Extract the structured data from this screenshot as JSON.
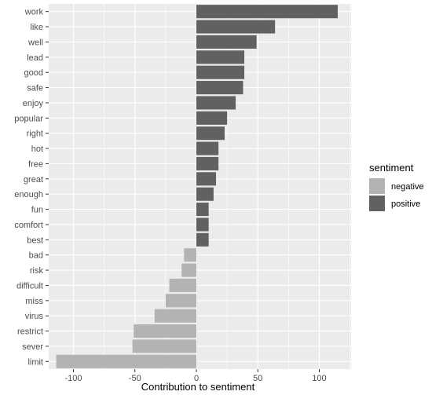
{
  "chart_data": {
    "type": "bar",
    "orientation": "horizontal",
    "categories": [
      "work",
      "like",
      "well",
      "lead",
      "good",
      "safe",
      "enjoy",
      "popular",
      "right",
      "hot",
      "free",
      "great",
      "enough",
      "fun",
      "comfort",
      "best",
      "bad",
      "risk",
      "difficult",
      "miss",
      "virus",
      "restrict",
      "sever",
      "limit"
    ],
    "values": [
      115,
      64,
      49,
      39,
      39,
      38,
      32,
      25,
      23,
      18,
      18,
      16,
      14,
      10,
      10,
      10,
      -10,
      -12,
      -22,
      -25,
      -34,
      -51,
      -52,
      -114
    ],
    "sentiment": [
      "positive",
      "positive",
      "positive",
      "positive",
      "positive",
      "positive",
      "positive",
      "positive",
      "positive",
      "positive",
      "positive",
      "positive",
      "positive",
      "positive",
      "positive",
      "positive",
      "negative",
      "negative",
      "negative",
      "negative",
      "negative",
      "negative",
      "negative",
      "negative"
    ],
    "xlabel": "Contribution to sentiment",
    "ylabel": "",
    "xlim": [
      -115,
      126
    ],
    "x_ticks": [
      -100,
      -50,
      0,
      50,
      100
    ],
    "grid": true,
    "legend": {
      "title": "sentiment",
      "placement": "right",
      "entries": [
        {
          "name": "negative",
          "color": "#b3b3b3"
        },
        {
          "name": "positive",
          "color": "#616161"
        }
      ]
    },
    "colors": {
      "positive": "#616161",
      "negative": "#b3b3b3",
      "panel": "#ebebeb",
      "grid": "#ffffff"
    }
  }
}
